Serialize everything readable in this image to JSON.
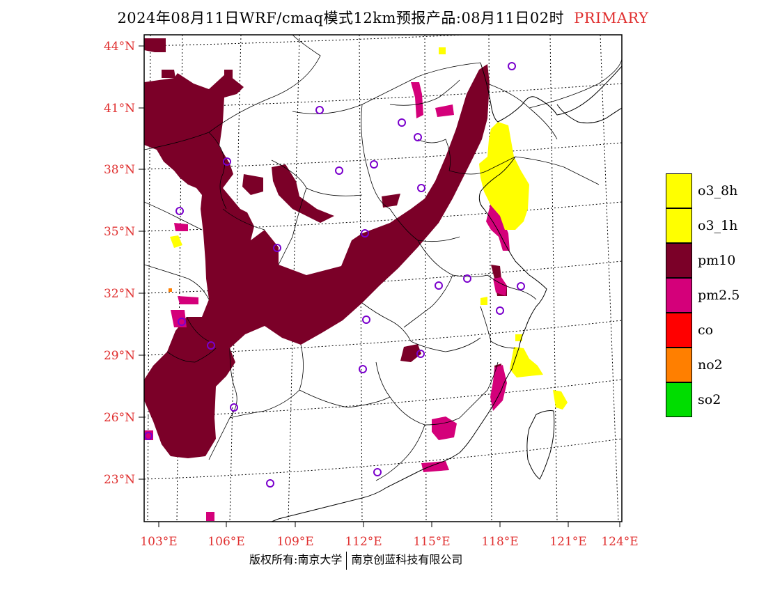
{
  "header": {
    "title": "2024年08月11日WRF/cmaq模式12km预报产品:08月11日02时",
    "tag": "PRIMARY"
  },
  "map": {
    "lat_labels": [
      "44°N",
      "41°N",
      "38°N",
      "35°N",
      "32°N",
      "29°N",
      "26°N",
      "23°N"
    ],
    "lon_labels": [
      "103°E",
      "106°E",
      "109°E",
      "112°E",
      "115°E",
      "118°E",
      "121°E",
      "124°E"
    ]
  },
  "legend": [
    {
      "label": "o3_8h",
      "color": "#ffff00"
    },
    {
      "label": "o3_1h",
      "color": "#ffff00"
    },
    {
      "label": "pm10",
      "color": "#7b0028"
    },
    {
      "label": "pm2.5",
      "color": "#d4007a"
    },
    {
      "label": "co",
      "color": "#ff0000"
    },
    {
      "label": "no2",
      "color": "#ff7f00"
    },
    {
      "label": "so2",
      "color": "#00dd00"
    }
  ],
  "footer": {
    "left": "版权所有:南京大学",
    "right": "南京创蓝科技有限公司"
  }
}
